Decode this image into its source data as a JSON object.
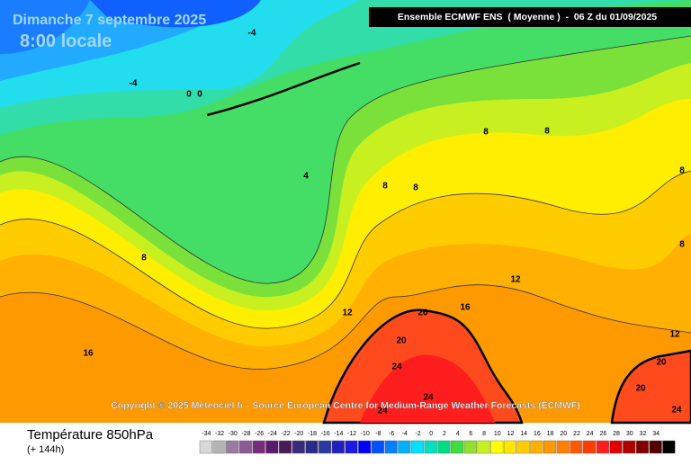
{
  "header": {
    "date": "Dimanche 7 septembre 2025",
    "time": "8:00 locale",
    "model": "Ensemble ECMWF ENS  ( Moyenne )  -  06 Z du 01/09/2025"
  },
  "copyright": "Copyright © 2025 Meteociel.fr - Source European Centre for Medium-Range Weather Forecasts (ECMWF)",
  "footer": {
    "title": "Température 850hPa",
    "lead": "(+ 144h)"
  },
  "contour_labels": [
    -4,
    -4,
    0,
    0,
    4,
    8,
    8,
    8,
    8,
    8,
    8,
    8,
    12,
    12,
    12,
    16,
    16,
    20,
    20,
    20,
    20,
    24,
    24,
    24,
    24
  ],
  "legend": {
    "labels": [
      -34,
      -32,
      -30,
      -28,
      -26,
      -24,
      -22,
      -20,
      -18,
      -16,
      -14,
      -12,
      -10,
      -8,
      -6,
      -4,
      -2,
      0,
      2,
      4,
      6,
      8,
      10,
      12,
      14,
      16,
      18,
      20,
      22,
      24,
      26,
      28,
      30,
      32,
      34
    ]
  }
}
